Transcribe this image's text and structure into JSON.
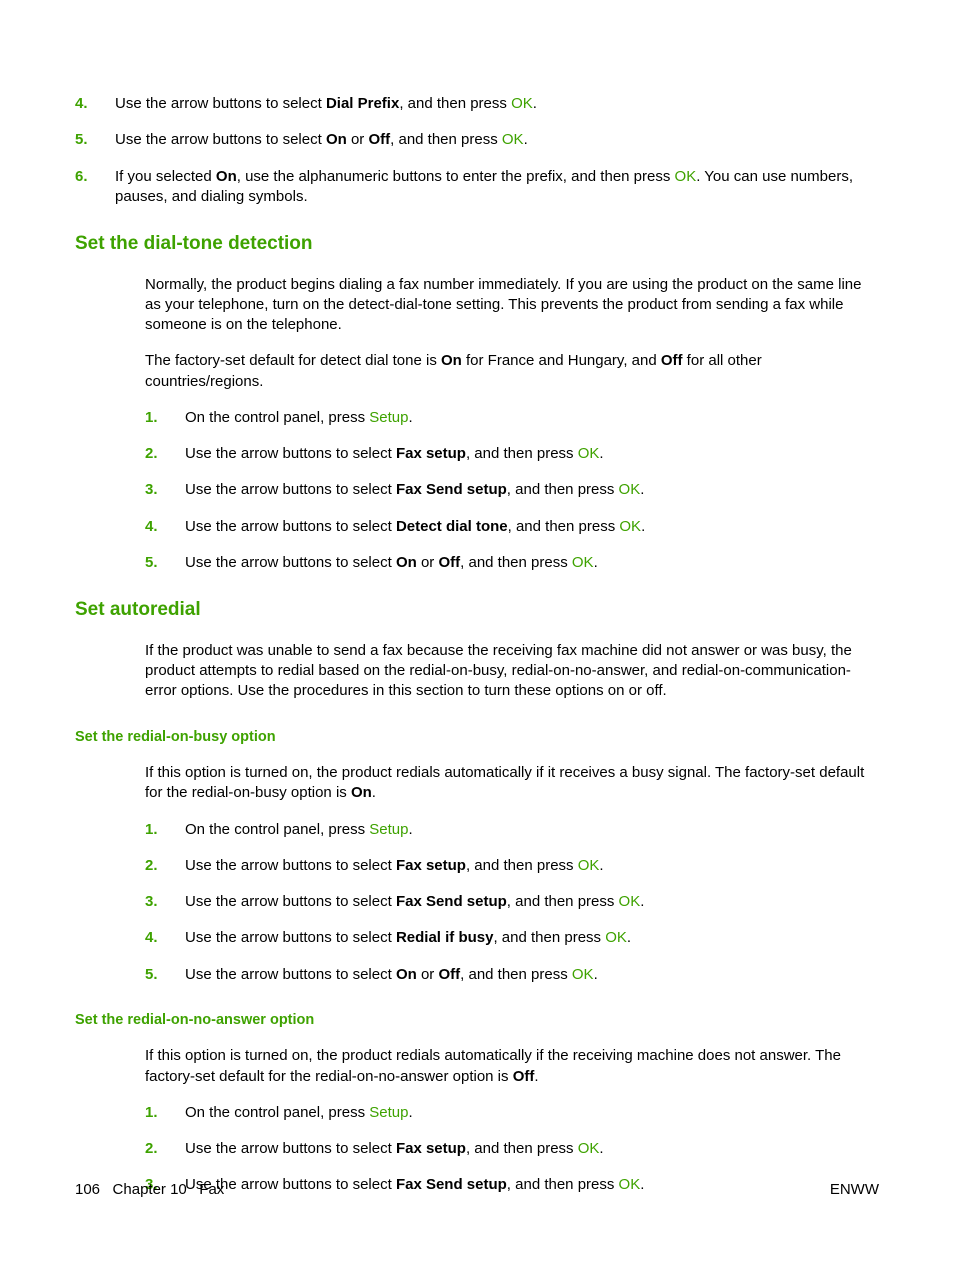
{
  "colors": {
    "accent": "#3ea200",
    "text": "#000000",
    "background": "#ffffff"
  },
  "typography": {
    "body_fontsize_pt": 11,
    "h2_fontsize_pt": 14,
    "h3_fontsize_pt": 11,
    "font_family": "Arial"
  },
  "topList": {
    "items": [
      {
        "num": "4.",
        "pre": "Use the arrow buttons to select ",
        "bold": "Dial Prefix",
        "mid": ", and then press ",
        "ok": "OK",
        "post": "."
      },
      {
        "num": "5.",
        "pre": "Use the arrow buttons to select ",
        "bold": "On",
        "mid2_pre": " or ",
        "bold2": "Off",
        "mid": ", and then press ",
        "ok": "OK",
        "post": "."
      },
      {
        "num": "6.",
        "pre": "If you selected ",
        "bold": "On",
        "mid": ", use the alphanumeric buttons to enter the prefix, and then press ",
        "ok": "OK",
        "post": ". You can use numbers, pauses, and dialing symbols."
      }
    ]
  },
  "section1": {
    "heading": "Set the dial-tone detection",
    "p1": "Normally, the product begins dialing a fax number immediately. If you are using the product on the same line as your telephone, turn on the detect-dial-tone setting. This prevents the product from sending a fax while someone is on the telephone.",
    "p2_pre": "The factory-set default for detect dial tone is ",
    "p2_b1": "On",
    "p2_mid": " for France and Hungary, and ",
    "p2_b2": "Off",
    "p2_post": " for all other countries/regions.",
    "steps": [
      {
        "num": "1.",
        "pre": "On the control panel, press ",
        "ok": "Setup",
        "post": "."
      },
      {
        "num": "2.",
        "pre": "Use the arrow buttons to select ",
        "bold": "Fax setup",
        "mid": ", and then press ",
        "ok": "OK",
        "post": "."
      },
      {
        "num": "3.",
        "pre": "Use the arrow buttons to select ",
        "bold": "Fax Send setup",
        "mid": ", and then press ",
        "ok": "OK",
        "post": "."
      },
      {
        "num": "4.",
        "pre": "Use the arrow buttons to select ",
        "bold": "Detect dial tone",
        "mid": ", and then press ",
        "ok": "OK",
        "post": "."
      },
      {
        "num": "5.",
        "pre": "Use the arrow buttons to select ",
        "bold": "On",
        "mid2_pre": " or ",
        "bold2": "Off",
        "mid": ", and then press ",
        "ok": "OK",
        "post": "."
      }
    ]
  },
  "section2": {
    "heading": "Set autoredial",
    "p1": "If the product was unable to send a fax because the receiving fax machine did not answer or was busy, the product attempts to redial based on the redial-on-busy, redial-on-no-answer, and redial-on-communication-error options. Use the procedures in this section to turn these options on or off.",
    "sub1": {
      "heading": "Set the redial-on-busy option",
      "p1_pre": "If this option is turned on, the product redials automatically if it receives a busy signal. The factory-set default for the redial-on-busy option is ",
      "p1_b": "On",
      "p1_post": ".",
      "steps": [
        {
          "num": "1.",
          "pre": "On the control panel, press ",
          "ok": "Setup",
          "post": "."
        },
        {
          "num": "2.",
          "pre": "Use the arrow buttons to select ",
          "bold": "Fax setup",
          "mid": ", and then press ",
          "ok": "OK",
          "post": "."
        },
        {
          "num": "3.",
          "pre": "Use the arrow buttons to select ",
          "bold": "Fax Send setup",
          "mid": ", and then press ",
          "ok": "OK",
          "post": "."
        },
        {
          "num": "4.",
          "pre": "Use the arrow buttons to select ",
          "bold": "Redial if busy",
          "mid": ", and then press ",
          "ok": "OK",
          "post": "."
        },
        {
          "num": "5.",
          "pre": "Use the arrow buttons to select ",
          "bold": "On",
          "mid2_pre": " or ",
          "bold2": "Off",
          "mid": ", and then press ",
          "ok": "OK",
          "post": "."
        }
      ]
    },
    "sub2": {
      "heading": "Set the redial-on-no-answer option",
      "p1_pre": "If this option is turned on, the product redials automatically if the receiving machine does not answer. The factory-set default for the redial-on-no-answer option is ",
      "p1_b": "Off",
      "p1_post": ".",
      "steps": [
        {
          "num": "1.",
          "pre": "On the control panel, press ",
          "ok": "Setup",
          "post": "."
        },
        {
          "num": "2.",
          "pre": "Use the arrow buttons to select ",
          "bold": "Fax setup",
          "mid": ", and then press ",
          "ok": "OK",
          "post": "."
        },
        {
          "num": "3.",
          "pre": "Use the arrow buttons to select ",
          "bold": "Fax Send setup",
          "mid": ", and then press ",
          "ok": "OK",
          "post": "."
        }
      ]
    }
  },
  "footer": {
    "left_page": "106",
    "left_chapter": "Chapter 10",
    "left_title": "Fax",
    "right": "ENWW"
  }
}
